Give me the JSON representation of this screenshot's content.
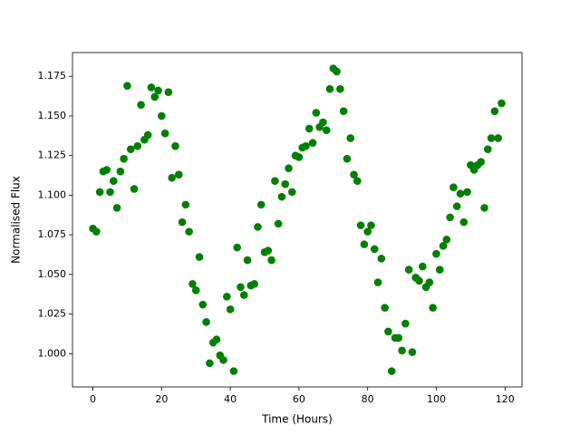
{
  "chart_data": {
    "type": "scatter",
    "x_label": "Time (Hours)",
    "y_label": "Normalised Flux",
    "series": [
      {
        "color": "#008000",
        "x": [
          0,
          1,
          2,
          3,
          4,
          5,
          6,
          7,
          8,
          9,
          10,
          11,
          12,
          13,
          14,
          15,
          16,
          17,
          18,
          19,
          20,
          21,
          22,
          23,
          24,
          25,
          26,
          27,
          28,
          29,
          30,
          31,
          32,
          33,
          34,
          35,
          36,
          37,
          38,
          39,
          40,
          41,
          42,
          43,
          44,
          45,
          46,
          47,
          48,
          49,
          50,
          51,
          52,
          53,
          54,
          55,
          56,
          57,
          58,
          59,
          60,
          61,
          62,
          63,
          64,
          65,
          66,
          67,
          68,
          69,
          70,
          71,
          72,
          73,
          74,
          75,
          76,
          77,
          78,
          79,
          80,
          81,
          82,
          83,
          84,
          85,
          86,
          87,
          88,
          89,
          90,
          91,
          92,
          93,
          94,
          95,
          96,
          97,
          98,
          99,
          100,
          101,
          102,
          103,
          104,
          105,
          106,
          107,
          108,
          109,
          110,
          111,
          112,
          113,
          114,
          115,
          116,
          117,
          118,
          119
        ],
        "values": [
          1.079,
          1.077,
          1.102,
          1.115,
          1.116,
          1.102,
          1.109,
          1.092,
          1.115,
          1.123,
          1.169,
          1.129,
          1.104,
          1.131,
          1.157,
          1.135,
          1.138,
          1.168,
          1.162,
          1.166,
          1.15,
          1.139,
          1.165,
          1.111,
          1.131,
          1.113,
          1.083,
          1.094,
          1.077,
          1.044,
          1.04,
          1.061,
          1.031,
          1.02,
          0.994,
          1.007,
          1.009,
          0.999,
          0.996,
          1.036,
          1.028,
          0.989,
          1.067,
          1.042,
          1.037,
          1.059,
          1.043,
          1.044,
          1.08,
          1.094,
          1.064,
          1.065,
          1.059,
          1.109,
          1.082,
          1.099,
          1.107,
          1.117,
          1.102,
          1.125,
          1.124,
          1.13,
          1.131,
          1.142,
          1.133,
          1.152,
          1.143,
          1.146,
          1.141,
          1.167,
          1.18,
          1.178,
          1.167,
          1.153,
          1.123,
          1.136,
          1.113,
          1.109,
          1.081,
          1.069,
          1.077,
          1.081,
          1.066,
          1.045,
          1.06,
          1.029,
          1.014,
          0.989,
          1.01,
          1.01,
          1.002,
          1.019,
          1.053,
          1.001,
          1.048,
          1.046,
          1.055,
          1.042,
          1.045,
          1.029,
          1.063,
          1.053,
          1.068,
          1.072,
          1.086,
          1.105,
          1.093,
          1.101,
          1.083,
          1.102,
          1.119,
          1.116,
          1.119,
          1.121,
          1.092,
          1.129,
          1.136,
          1.153,
          1.136,
          1.158
        ]
      }
    ],
    "xlim": [
      -5.95,
      124.95
    ],
    "xticks": [
      0,
      20,
      40,
      60,
      80,
      100,
      120
    ],
    "ylim": [
      0.979,
      1.19
    ],
    "yticks": [
      {
        "value": 1,
        "label": "1.000"
      },
      {
        "value": 1.025,
        "label": "1.025"
      },
      {
        "value": 1.05,
        "label": "1.050"
      },
      {
        "value": 1.075,
        "label": "1.075"
      },
      {
        "value": 1.1,
        "label": "1.100"
      },
      {
        "value": 1.125,
        "label": "1.125"
      },
      {
        "value": 1.15,
        "label": "1.150"
      },
      {
        "value": 1.175,
        "label": "1.175"
      }
    ],
    "grid": false
  }
}
